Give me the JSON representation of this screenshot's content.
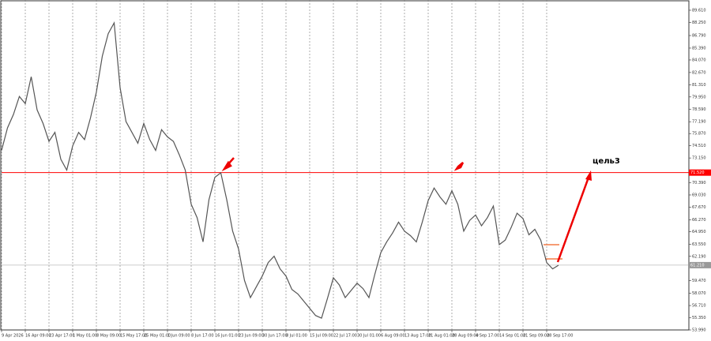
{
  "chart_data": {
    "type": "line",
    "xlim": [
      0,
      116
    ],
    "xticks": [
      {
        "value": 0,
        "label": "9 Apr 2026"
      },
      {
        "value": 4,
        "label": "16 Apr 09:00"
      },
      {
        "value": 8,
        "label": "23 Apr 17:00"
      },
      {
        "value": 12,
        "label": "1 May 01:00"
      },
      {
        "value": 16,
        "label": "8 May 09:00"
      },
      {
        "value": 20,
        "label": "15 May 17:00"
      },
      {
        "value": 24,
        "label": "25 May 01:00"
      },
      {
        "value": 28,
        "label": "1 Jun 09:00"
      },
      {
        "value": 32,
        "label": "8 Jun 17:00"
      },
      {
        "value": 36,
        "label": "16 Jun 01:00"
      },
      {
        "value": 40,
        "label": "23 Jun 09:00"
      },
      {
        "value": 44,
        "label": "30 Jun 17:00"
      },
      {
        "value": 48,
        "label": "8 Jul 01:00"
      },
      {
        "value": 52,
        "label": "15 Jul 09:00"
      },
      {
        "value": 56,
        "label": "22 Jul 17:00"
      },
      {
        "value": 60,
        "label": "30 Jul 01:00"
      },
      {
        "value": 64,
        "label": "6 Aug 09:00"
      },
      {
        "value": 68,
        "label": "13 Aug 17:00"
      },
      {
        "value": 72,
        "label": "21 Aug 01:00"
      },
      {
        "value": 76,
        "label": "28 Aug 09:00"
      },
      {
        "value": 80,
        "label": "4 Sep 17:00"
      },
      {
        "value": 84,
        "label": "14 Sep 01:00"
      },
      {
        "value": 88,
        "label": "21 Sep 09:00"
      },
      {
        "value": 92,
        "label": "28 Sep 17:00"
      }
    ],
    "ylim": [
      53.99,
      90.75
    ],
    "yticks": [
      {
        "value": 89.61,
        "label": "89.610"
      },
      {
        "value": 88.25,
        "label": "88.250"
      },
      {
        "value": 86.79,
        "label": "86.790"
      },
      {
        "value": 85.39,
        "label": "85.390"
      },
      {
        "value": 84.07,
        "label": "84.070"
      },
      {
        "value": 82.67,
        "label": "82.670"
      },
      {
        "value": 81.31,
        "label": "81.310"
      },
      {
        "value": 79.95,
        "label": "79.950"
      },
      {
        "value": 78.59,
        "label": "78.590"
      },
      {
        "value": 77.19,
        "label": "77.190"
      },
      {
        "value": 75.87,
        "label": "75.870"
      },
      {
        "value": 74.51,
        "label": "74.510"
      },
      {
        "value": 73.15,
        "label": "73.150"
      },
      {
        "value": 70.39,
        "label": "70.390"
      },
      {
        "value": 69.03,
        "label": "69.030"
      },
      {
        "value": 67.67,
        "label": "67.670"
      },
      {
        "value": 66.27,
        "label": "66.270"
      },
      {
        "value": 64.95,
        "label": "64.950"
      },
      {
        "value": 63.55,
        "label": "63.550"
      },
      {
        "value": 62.19,
        "label": "62.190"
      },
      {
        "value": 59.47,
        "label": "59.470"
      },
      {
        "value": 58.07,
        "label": "58.070"
      },
      {
        "value": 56.71,
        "label": "56.710"
      },
      {
        "value": 55.35,
        "label": "55.350"
      },
      {
        "value": 53.99,
        "label": "53.990"
      }
    ],
    "grid": true,
    "series": [
      {
        "color": "#555555",
        "values": [
          74.0,
          76.5,
          78.0,
          80.0,
          79.2,
          82.2,
          78.5,
          77.0,
          75.0,
          76.0,
          73.0,
          71.8,
          74.5,
          76.0,
          75.2,
          77.6,
          80.5,
          84.5,
          87.0,
          88.2,
          81.0,
          77.2,
          76.0,
          74.8,
          77.0,
          75.2,
          74.0,
          76.3,
          75.5,
          75.0,
          73.5,
          71.8,
          68.0,
          66.5,
          63.8,
          68.5,
          71.0,
          71.5,
          68.5,
          65.0,
          63.0,
          59.5,
          57.6,
          58.8,
          60.0,
          61.5,
          62.2,
          60.8,
          60.0,
          58.5,
          58.0,
          57.2,
          56.4,
          55.6,
          55.3,
          57.5,
          59.8,
          59.0,
          57.6,
          58.4,
          59.2,
          58.6,
          57.6,
          60.2,
          62.6,
          63.8,
          64.8,
          66.0,
          65.0,
          64.5,
          63.8,
          66.0,
          68.4,
          69.8,
          68.8,
          68.0,
          69.5,
          68.0,
          65.0,
          66.2,
          66.8,
          65.6,
          66.5,
          67.8,
          63.5,
          64.0,
          65.4,
          67.0,
          66.4,
          64.6,
          65.2,
          64.0,
          61.5,
          60.8,
          61.2
        ]
      }
    ],
    "levels": [
      {
        "value": 71.52,
        "label": "71.520",
        "color": "#ff0000"
      },
      {
        "value": 61.21,
        "label": "61.210",
        "color": "#9a9a9a"
      }
    ],
    "annotation": "цель3"
  }
}
